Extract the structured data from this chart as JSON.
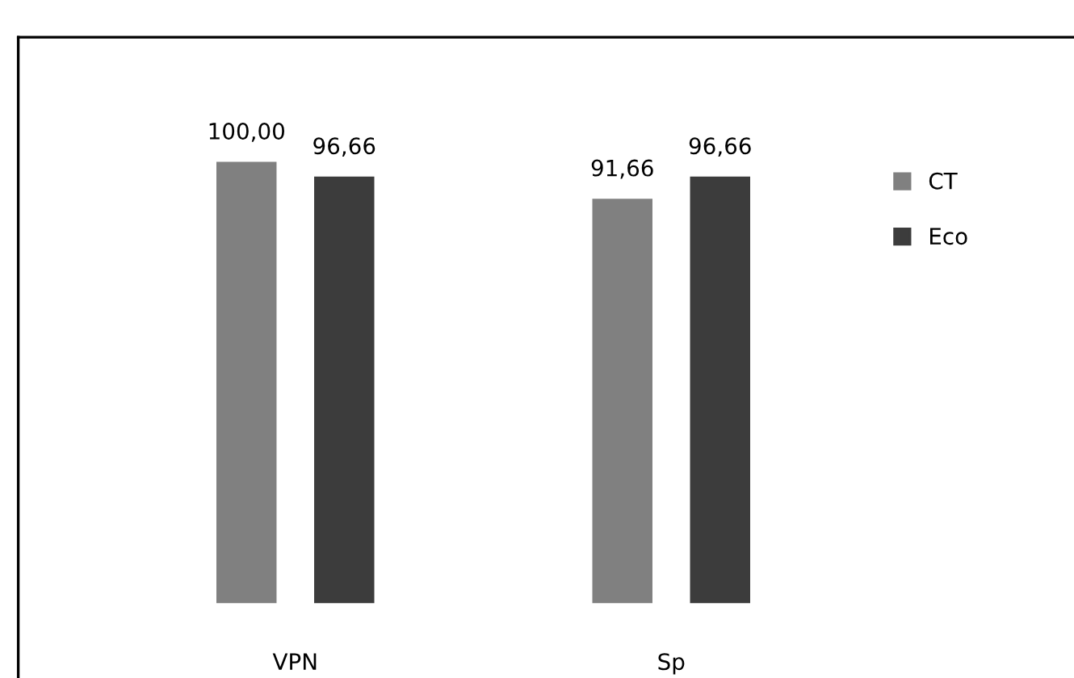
{
  "chart_data": {
    "type": "bar",
    "categories": [
      "VPN",
      "Sp"
    ],
    "series": [
      {
        "name": "CT",
        "color": "#808080",
        "values": [
          100.0,
          91.66
        ],
        "value_labels": [
          "100,00",
          "91,66"
        ]
      },
      {
        "name": "Eco",
        "color": "#3c3c3c",
        "values": [
          96.66,
          96.66
        ],
        "value_labels": [
          "96,66",
          "96,66"
        ]
      }
    ],
    "legend": "top right"
  }
}
